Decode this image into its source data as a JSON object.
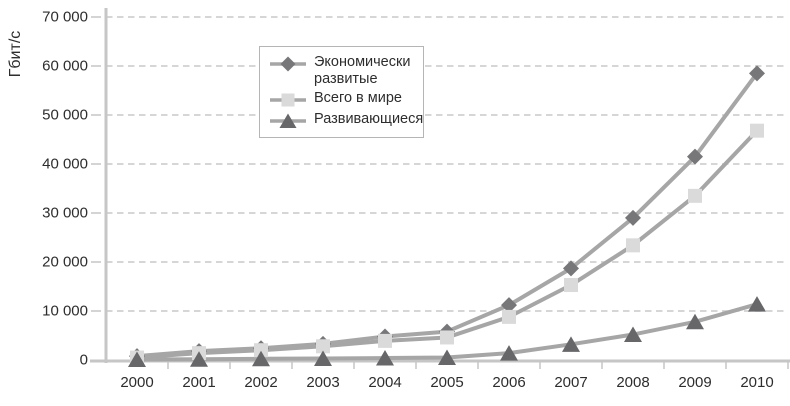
{
  "chart_data": {
    "type": "line",
    "title": "",
    "ylabel": "Гбит/с",
    "xlabel": "",
    "x_labels": [
      "2000",
      "2001",
      "2002",
      "2003",
      "2004",
      "2005",
      "2006",
      "2007",
      "2008",
      "2009",
      "2010"
    ],
    "ylim": [
      0,
      70000
    ],
    "ytick_step": 10000,
    "ytick_labels": [
      "0",
      "10 000",
      "20 000",
      "30 000",
      "40 000",
      "50 000",
      "60 000",
      "70 000"
    ],
    "grid": "horizontal-dashed",
    "legend_position": "inside-top-center",
    "series": [
      {
        "name": "Экономически развитые",
        "marker": "diamond",
        "marker_color": "#77777a",
        "line_color": "#a6a6a6",
        "values": [
          800,
          1800,
          2400,
          3300,
          4800,
          5800,
          11200,
          18700,
          29000,
          41500,
          58500
        ]
      },
      {
        "name": "Всего в мире",
        "marker": "square",
        "marker_color": "#dadada",
        "line_color": "#a6a6a6",
        "values": [
          500,
          1400,
          2000,
          2800,
          3900,
          4600,
          8800,
          15300,
          23400,
          33500,
          46800
        ]
      },
      {
        "name": "Развивающиеся",
        "marker": "triangle",
        "marker_color": "#67676a",
        "line_color": "#a6a6a6",
        "values": [
          100,
          150,
          250,
          300,
          400,
          500,
          1400,
          3200,
          5200,
          7800,
          11400
        ]
      }
    ]
  },
  "colors": {
    "axis": "#c6c6c6",
    "grid": "#c9c9c9",
    "text": "#2d2d2d",
    "legend_border": "#b5b5b5",
    "background": "#ffffff"
  }
}
